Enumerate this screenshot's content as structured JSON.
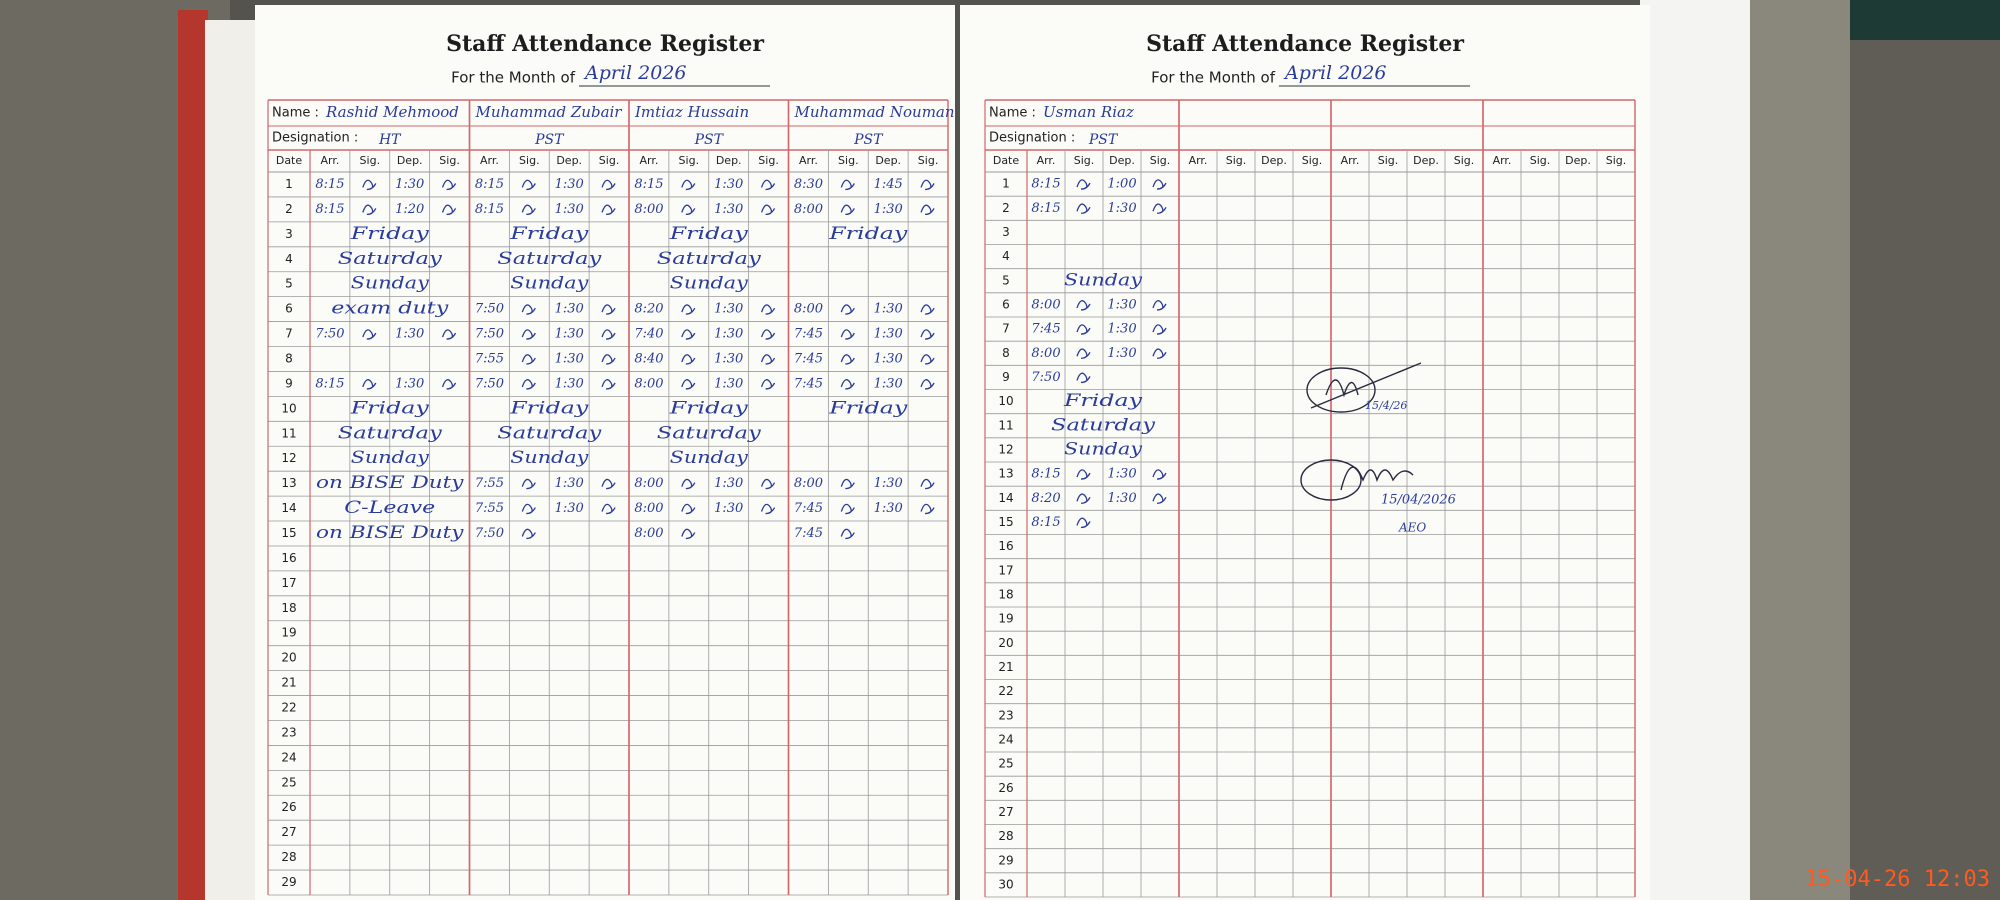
{
  "timestamp": "15-04-26 12:03",
  "register": {
    "title": "Staff Attendance Register",
    "month_label": "For the Month of",
    "month": "April 2026",
    "name_label": "Name :",
    "designation_label": "Designation :",
    "date_label": "Date",
    "column_headers": [
      "Arr.",
      "Sig.",
      "Dep.",
      "Sig."
    ]
  },
  "left_page": {
    "dates": [
      1,
      2,
      3,
      4,
      5,
      6,
      7,
      8,
      9,
      10,
      11,
      12,
      13,
      14,
      15,
      16,
      17,
      18,
      19,
      20,
      21,
      22,
      23,
      24,
      25,
      26,
      27,
      28,
      29
    ],
    "staff": [
      {
        "name": "Rashid Mehmood",
        "designation": "HT",
        "records": [
          {
            "date": 1,
            "arr": "8:15",
            "dep": "1:30"
          },
          {
            "date": 2,
            "arr": "8:15",
            "dep": "1:20"
          },
          {
            "date": 3,
            "note": "Friday"
          },
          {
            "date": 4,
            "note": "Saturday"
          },
          {
            "date": 5,
            "note": "Sunday"
          },
          {
            "date": 6,
            "note": "exam duty"
          },
          {
            "date": 7,
            "arr": "7:50",
            "dep": "1:30"
          },
          {
            "date": 9,
            "arr": "8:15",
            "dep": "1:30"
          },
          {
            "date": 10,
            "note": "Friday"
          },
          {
            "date": 11,
            "note": "Saturday"
          },
          {
            "date": 12,
            "note": "Sunday"
          },
          {
            "date": 13,
            "note": "on BISE Duty"
          },
          {
            "date": 14,
            "note": "C-Leave"
          },
          {
            "date": 15,
            "note": "on BISE Duty"
          }
        ]
      },
      {
        "name": "Muhammad Zubair",
        "designation": "PST",
        "records": [
          {
            "date": 1,
            "arr": "8:15",
            "dep": "1:30"
          },
          {
            "date": 2,
            "arr": "8:15",
            "dep": "1:30"
          },
          {
            "date": 3,
            "note": "Friday"
          },
          {
            "date": 4,
            "note": "Saturday"
          },
          {
            "date": 5,
            "note": "Sunday"
          },
          {
            "date": 6,
            "arr": "7:50",
            "dep": "1:30"
          },
          {
            "date": 7,
            "arr": "7:50",
            "dep": "1:30"
          },
          {
            "date": 8,
            "arr": "7:55",
            "dep": "1:30"
          },
          {
            "date": 9,
            "arr": "7:50",
            "dep": "1:30"
          },
          {
            "date": 10,
            "note": "Friday"
          },
          {
            "date": 11,
            "note": "Saturday"
          },
          {
            "date": 12,
            "note": "Sunday"
          },
          {
            "date": 13,
            "arr": "7:55",
            "dep": "1:30"
          },
          {
            "date": 14,
            "arr": "7:55",
            "dep": "1:30"
          },
          {
            "date": 15,
            "arr": "7:50"
          }
        ]
      },
      {
        "name": "Imtiaz Hussain",
        "designation": "PST",
        "records": [
          {
            "date": 1,
            "arr": "8:15",
            "dep": "1:30"
          },
          {
            "date": 2,
            "arr": "8:00",
            "dep": "1:30"
          },
          {
            "date": 3,
            "note": "Friday"
          },
          {
            "date": 4,
            "note": "Saturday"
          },
          {
            "date": 5,
            "note": "Sunday"
          },
          {
            "date": 6,
            "arr": "8:20",
            "dep": "1:30"
          },
          {
            "date": 7,
            "arr": "7:40",
            "dep": "1:30"
          },
          {
            "date": 8,
            "arr": "8:40",
            "dep": "1:30"
          },
          {
            "date": 9,
            "arr": "8:00",
            "dep": "1:30"
          },
          {
            "date": 10,
            "note": "Friday"
          },
          {
            "date": 11,
            "note": "Saturday"
          },
          {
            "date": 12,
            "note": "Sunday"
          },
          {
            "date": 13,
            "arr": "8:00",
            "dep": "1:30"
          },
          {
            "date": 14,
            "arr": "8:00",
            "dep": "1:30"
          },
          {
            "date": 15,
            "arr": "8:00"
          }
        ]
      },
      {
        "name": "Muhammad Nouman",
        "designation": "PST",
        "records": [
          {
            "date": 1,
            "arr": "8:30",
            "dep": "1:45"
          },
          {
            "date": 2,
            "arr": "8:00",
            "dep": "1:30"
          },
          {
            "date": 3,
            "note": "Friday"
          },
          {
            "date": 6,
            "arr": "8:00",
            "dep": "1:30"
          },
          {
            "date": 7,
            "arr": "7:45",
            "dep": "1:30"
          },
          {
            "date": 8,
            "arr": "7:45",
            "dep": "1:30"
          },
          {
            "date": 9,
            "arr": "7:45",
            "dep": "1:30"
          },
          {
            "date": 10,
            "note": "Friday"
          },
          {
            "date": 13,
            "arr": "8:00",
            "dep": "1:30"
          },
          {
            "date": 14,
            "arr": "7:45",
            "dep": "1:30"
          },
          {
            "date": 15,
            "arr": "7:45"
          }
        ]
      }
    ]
  },
  "right_page": {
    "dates": [
      1,
      2,
      3,
      4,
      5,
      6,
      7,
      8,
      9,
      10,
      11,
      12,
      13,
      14,
      15,
      16,
      17,
      18,
      19,
      20,
      21,
      22,
      23,
      24,
      25,
      26,
      27,
      28,
      29,
      30
    ],
    "staff": [
      {
        "name": "Usman Riaz",
        "designation": "PST",
        "records": [
          {
            "date": 1,
            "arr": "8:15",
            "dep": "1:00"
          },
          {
            "date": 2,
            "arr": "8:15",
            "dep": "1:30"
          },
          {
            "date": 5,
            "note": "Sunday"
          },
          {
            "date": 6,
            "arr": "8:00",
            "dep": "1:30"
          },
          {
            "date": 7,
            "arr": "7:45",
            "dep": "1:30"
          },
          {
            "date": 8,
            "arr": "8:00",
            "dep": "1:30"
          },
          {
            "date": 9,
            "arr": "7:50"
          },
          {
            "date": 10,
            "note": "Friday"
          },
          {
            "date": 11,
            "note": "Saturday"
          },
          {
            "date": 12,
            "note": "Sunday"
          },
          {
            "date": 13,
            "arr": "8:15",
            "dep": "1:30"
          },
          {
            "date": 14,
            "arr": "8:20",
            "dep": "1:30"
          },
          {
            "date": 15,
            "arr": "8:15"
          }
        ]
      }
    ],
    "endorsement": {
      "initial_date": "15/4/26",
      "date": "15/04/2026",
      "title": "AEO"
    }
  }
}
